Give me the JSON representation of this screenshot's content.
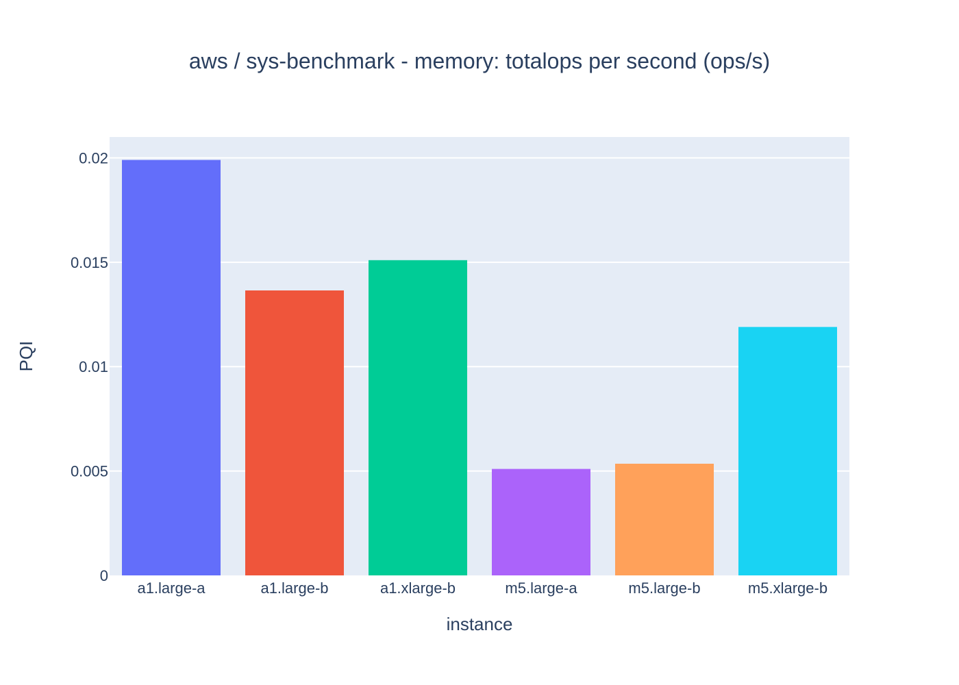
{
  "chart_data": {
    "type": "bar",
    "title": "aws / sys-benchmark - memory: totalops per second (ops/s)",
    "xlabel": "instance",
    "ylabel": "PQI",
    "categories": [
      "a1.large-a",
      "a1.large-b",
      "a1.xlarge-b",
      "m5.large-a",
      "m5.large-b",
      "m5.xlarge-b"
    ],
    "values": [
      0.0199,
      0.01365,
      0.0151,
      0.0051,
      0.00535,
      0.0119
    ],
    "colors": [
      "#636efa",
      "#ef553b",
      "#00cc96",
      "#ab63fa",
      "#ffa15a",
      "#19d3f3"
    ],
    "ylim": [
      0,
      0.021
    ],
    "yticks": [
      0,
      0.005,
      0.01,
      0.015,
      0.02
    ],
    "ytick_labels": [
      "0",
      "0.005",
      "0.01",
      "0.015",
      "0.02"
    ],
    "grid": true,
    "plot_bg": "#e5ecf6"
  }
}
